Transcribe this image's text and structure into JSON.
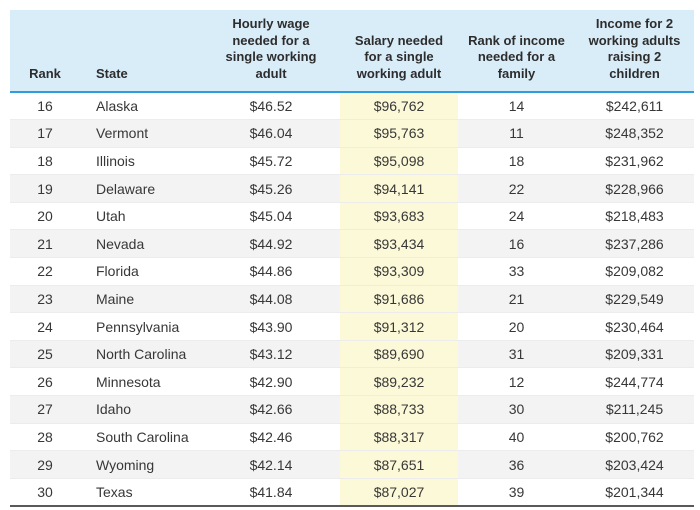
{
  "chart_data": {
    "type": "table",
    "columns": [
      "Rank",
      "State",
      "Hourly wage needed for a single working adult",
      "Salary needed for a single working adult",
      "Rank of income needed for a family",
      "Income for 2 working adults raising 2 children"
    ],
    "highlighted_column": "Salary needed for a single working adult",
    "rows": [
      [
        "16",
        "Alaska",
        "$46.52",
        "$96,762",
        "14",
        "$242,611"
      ],
      [
        "17",
        "Vermont",
        "$46.04",
        "$95,763",
        "11",
        "$248,352"
      ],
      [
        "18",
        "Illinois",
        "$45.72",
        "$95,098",
        "18",
        "$231,962"
      ],
      [
        "19",
        "Delaware",
        "$45.26",
        "$94,141",
        "22",
        "$228,966"
      ],
      [
        "20",
        "Utah",
        "$45.04",
        "$93,683",
        "24",
        "$218,483"
      ],
      [
        "21",
        "Nevada",
        "$44.92",
        "$93,434",
        "16",
        "$237,286"
      ],
      [
        "22",
        "Florida",
        "$44.86",
        "$93,309",
        "33",
        "$209,082"
      ],
      [
        "23",
        "Maine",
        "$44.08",
        "$91,686",
        "21",
        "$229,549"
      ],
      [
        "24",
        "Pennsylvania",
        "$43.90",
        "$91,312",
        "20",
        "$230,464"
      ],
      [
        "25",
        "North Carolina",
        "$43.12",
        "$89,690",
        "31",
        "$209,331"
      ],
      [
        "26",
        "Minnesota",
        "$42.90",
        "$89,232",
        "12",
        "$244,774"
      ],
      [
        "27",
        "Idaho",
        "$42.66",
        "$88,733",
        "30",
        "$211,245"
      ],
      [
        "28",
        "South Carolina",
        "$42.46",
        "$88,317",
        "40",
        "$200,762"
      ],
      [
        "29",
        "Wyoming",
        "$42.14",
        "$87,651",
        "36",
        "$203,424"
      ],
      [
        "30",
        "Texas",
        "$41.84",
        "$87,027",
        "39",
        "$201,344"
      ]
    ],
    "layout": {
      "zebra_striping": true,
      "striped_rows": "odd ranks (17,19,21,23,25,27,29)",
      "header_vertical_align": "bottom"
    },
    "colors": {
      "header_bg": "#d9edf9",
      "header_underline": "#2d9edb",
      "row_stripe": "#f3f3f3",
      "salary_column_highlight": "#fcf9d8",
      "text": "#373737",
      "bottom_rule": "#595959"
    }
  }
}
